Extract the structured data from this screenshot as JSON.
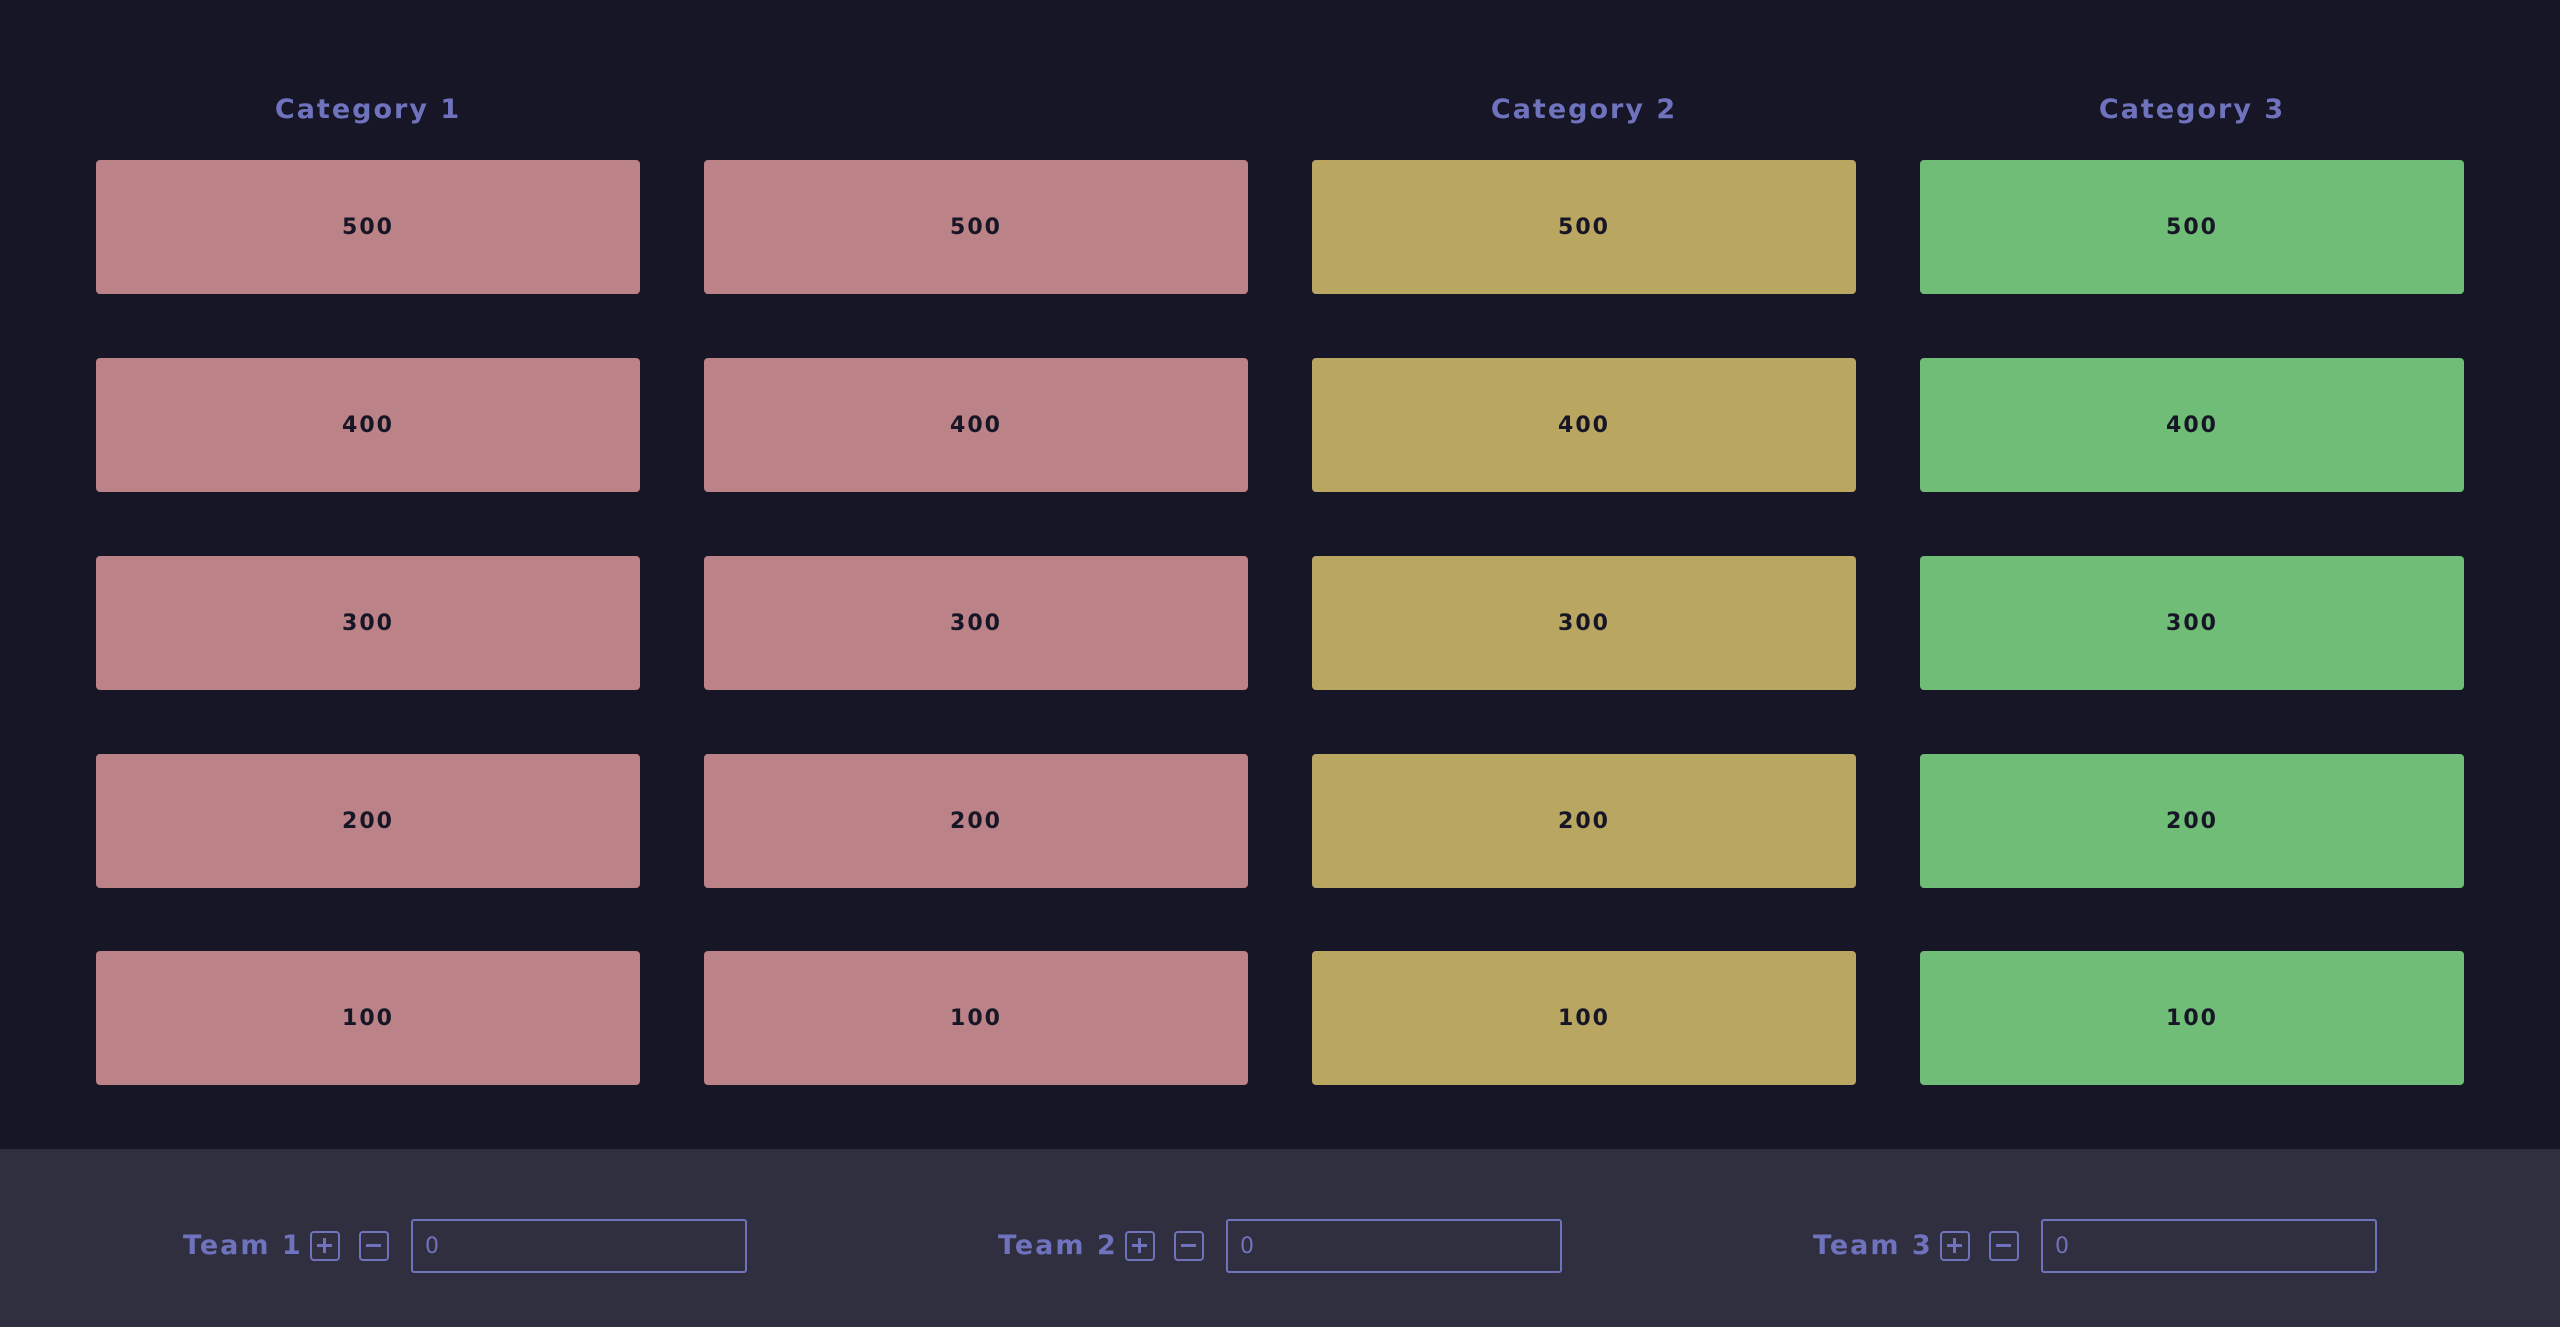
{
  "colors": {
    "background": "#171627",
    "footer": "#302f40",
    "accent": "#6f73bd",
    "pink": "#bb8287",
    "gold": "#b9a660",
    "green": "#6fbd76"
  },
  "columns": [
    {
      "title": "Category 1",
      "color": "#bb8287",
      "values": [
        "500",
        "400",
        "300",
        "200",
        "100"
      ]
    },
    {
      "title": "",
      "color": "#bb8287",
      "values": [
        "500",
        "400",
        "300",
        "200",
        "100"
      ]
    },
    {
      "title": "Category 2",
      "color": "#b9a660",
      "values": [
        "500",
        "400",
        "300",
        "200",
        "100"
      ]
    },
    {
      "title": "Category 3",
      "color": "#6fbd76",
      "values": [
        "500",
        "400",
        "300",
        "200",
        "100"
      ]
    }
  ],
  "teams": [
    {
      "name": "Team 1",
      "score": "0",
      "plus_icon": "plus-square-icon",
      "minus_icon": "minus-square-icon"
    },
    {
      "name": "Team 2",
      "score": "0",
      "plus_icon": "plus-square-icon",
      "minus_icon": "minus-square-icon"
    },
    {
      "name": "Team 3",
      "score": "0",
      "plus_icon": "plus-square-icon",
      "minus_icon": "minus-square-icon"
    }
  ]
}
